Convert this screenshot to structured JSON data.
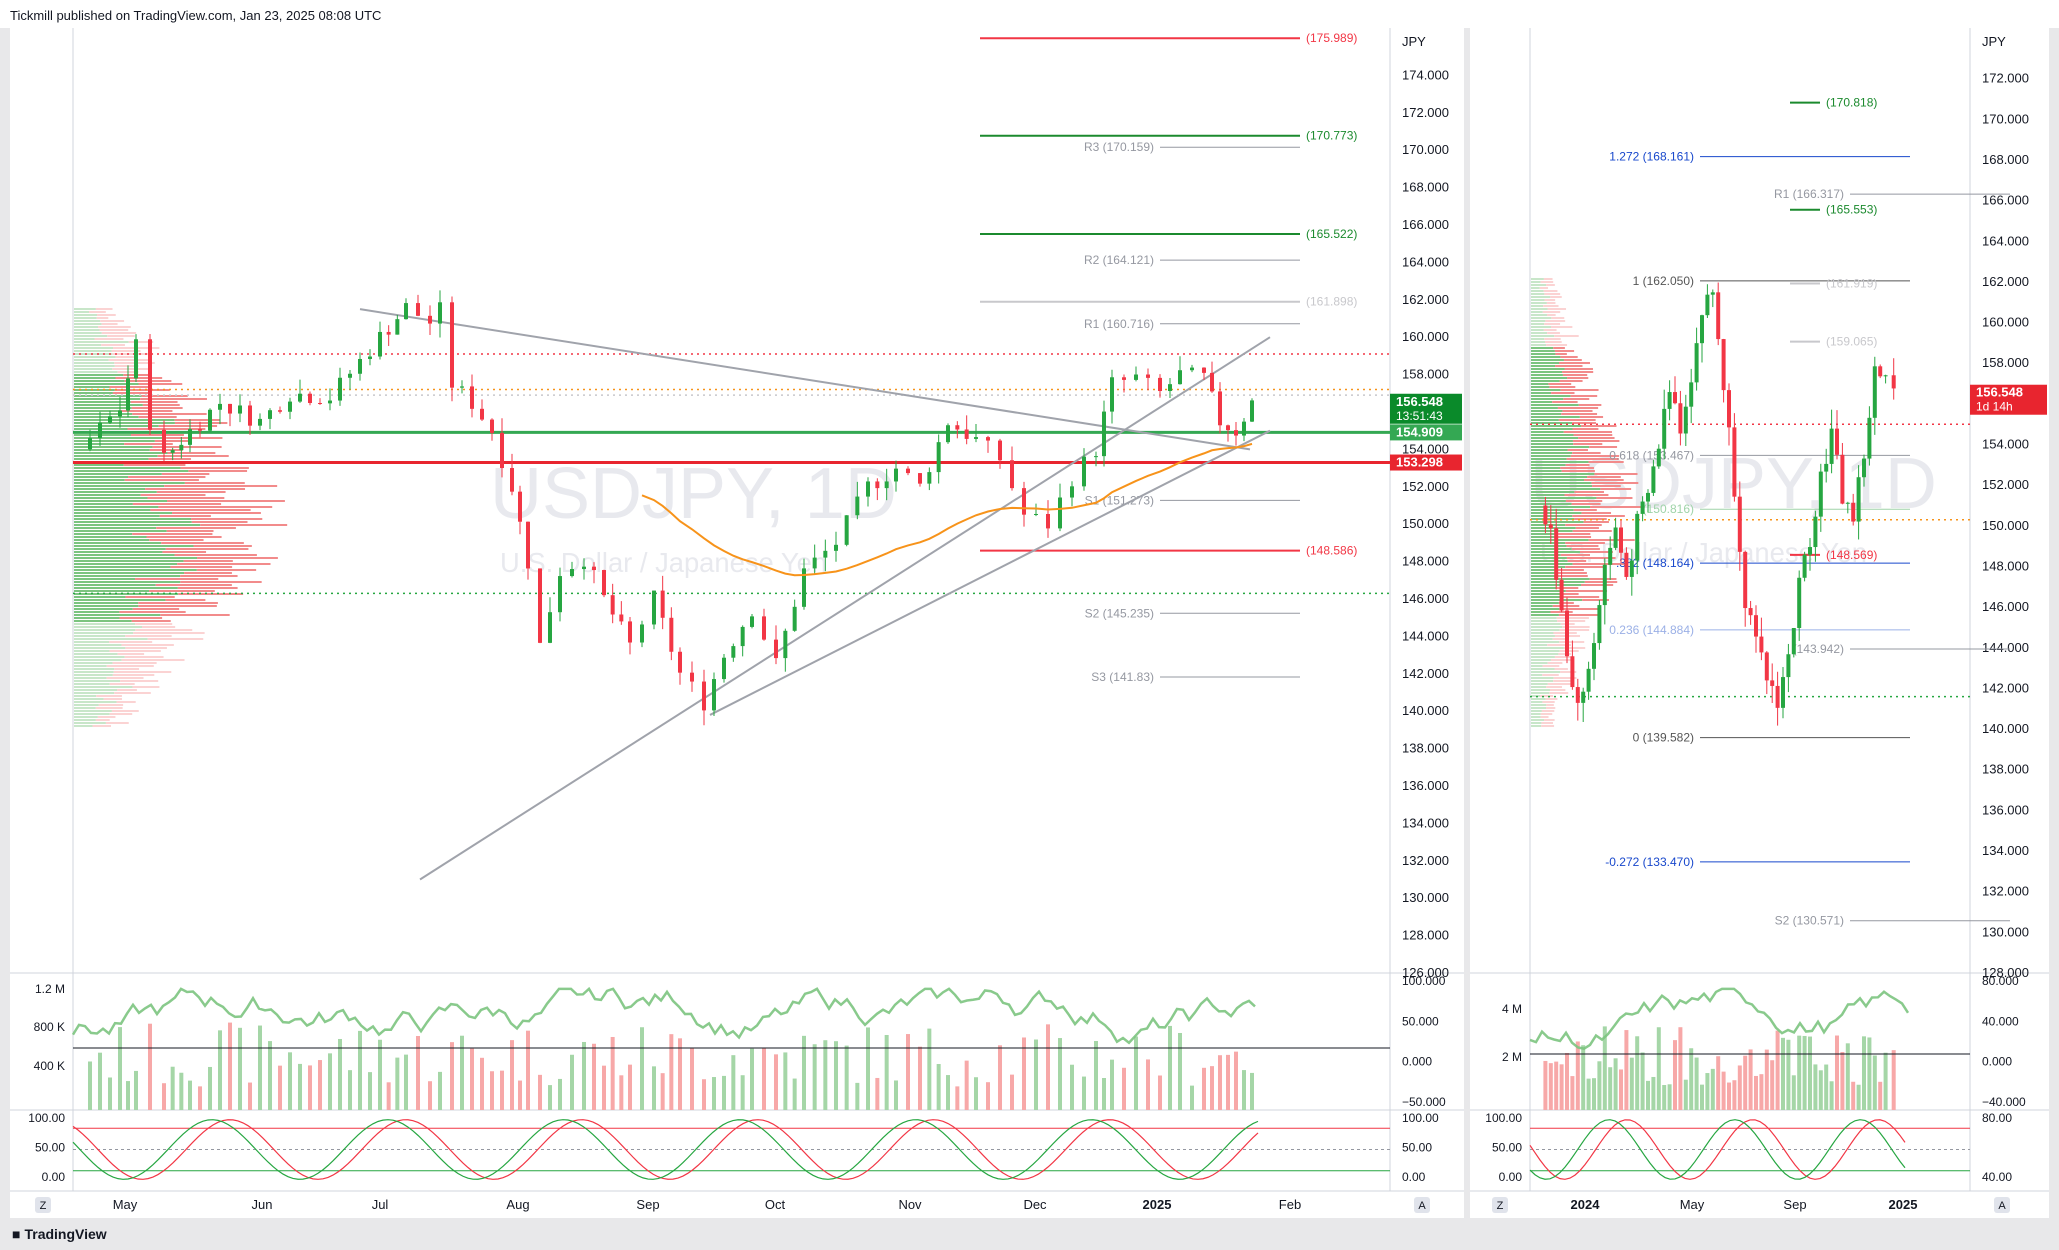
{
  "header": {
    "text": "Tickmill published on TradingView.com, Jan 23, 2025 08:08 UTC"
  },
  "footer": {
    "brand": "TradingView"
  },
  "colors": {
    "up": "#26a641",
    "down": "#f23645",
    "ema": "#f7931a",
    "grid": "#f0f3fa",
    "fib": "#1848cc"
  },
  "chart_data": [
    {
      "type": "candlestick",
      "title": "USDJPY",
      "subtitle": "U.S. Dollar / Japanese Yen",
      "currency": "JPY",
      "ylim": [
        126,
        176
      ],
      "y_ticks": [
        "174.000",
        "172.000",
        "170.000",
        "168.000",
        "166.000",
        "164.000",
        "162.000",
        "160.000",
        "158.000",
        "156.000",
        "154.000",
        "152.000",
        "150.000",
        "148.000",
        "146.000",
        "144.000",
        "142.000",
        "140.000",
        "138.000",
        "136.000",
        "134.000",
        "132.000",
        "130.000",
        "128.000",
        "126.000"
      ],
      "x_ticks": [
        "May",
        "Jun",
        "Jul",
        "Aug",
        "Sep",
        "Oct",
        "Nov",
        "Dec",
        "2025",
        "Feb"
      ],
      "candles_anchor": [
        {
          "x": 0,
          "y": 154.0
        },
        {
          "x": 20,
          "y": 156.2
        },
        {
          "x": 28,
          "y": 159.5
        },
        {
          "x": 35,
          "y": 155.5
        },
        {
          "x": 42,
          "y": 153.5
        },
        {
          "x": 55,
          "y": 155.0
        },
        {
          "x": 70,
          "y": 156.5
        },
        {
          "x": 90,
          "y": 155.5
        },
        {
          "x": 105,
          "y": 157.0
        },
        {
          "x": 125,
          "y": 156.8
        },
        {
          "x": 150,
          "y": 160.0
        },
        {
          "x": 163,
          "y": 161.6
        },
        {
          "x": 175,
          "y": 160.8
        },
        {
          "x": 180,
          "y": 161.4
        },
        {
          "x": 186,
          "y": 157.5
        },
        {
          "x": 196,
          "y": 156.5
        },
        {
          "x": 206,
          "y": 155.0
        },
        {
          "x": 216,
          "y": 152.0
        },
        {
          "x": 224,
          "y": 148.0
        },
        {
          "x": 230,
          "y": 143.5
        },
        {
          "x": 240,
          "y": 147.5
        },
        {
          "x": 252,
          "y": 148.2
        },
        {
          "x": 262,
          "y": 146.0
        },
        {
          "x": 275,
          "y": 143.5
        },
        {
          "x": 287,
          "y": 146.0
        },
        {
          "x": 300,
          "y": 142.0
        },
        {
          "x": 312,
          "y": 140.5
        },
        {
          "x": 322,
          "y": 143.0
        },
        {
          "x": 336,
          "y": 145.5
        },
        {
          "x": 348,
          "y": 142.5
        },
        {
          "x": 362,
          "y": 147.5
        },
        {
          "x": 378,
          "y": 149.0
        },
        {
          "x": 394,
          "y": 152.0
        },
        {
          "x": 408,
          "y": 153.0
        },
        {
          "x": 420,
          "y": 152.0
        },
        {
          "x": 434,
          "y": 155.5
        },
        {
          "x": 448,
          "y": 154.5
        },
        {
          "x": 460,
          "y": 153.5
        },
        {
          "x": 472,
          "y": 150.5
        },
        {
          "x": 484,
          "y": 150.0
        },
        {
          "x": 496,
          "y": 152.5
        },
        {
          "x": 508,
          "y": 154.0
        },
        {
          "x": 516,
          "y": 157.5
        },
        {
          "x": 528,
          "y": 157.8
        },
        {
          "x": 540,
          "y": 157.0
        },
        {
          "x": 550,
          "y": 158.0
        },
        {
          "x": 562,
          "y": 157.8
        },
        {
          "x": 570,
          "y": 155.5
        },
        {
          "x": 578,
          "y": 155.0
        },
        {
          "x": 586,
          "y": 156.5
        }
      ],
      "levels": [
        {
          "label": "(175.989)",
          "value": 175.989,
          "color": "#f23645",
          "kind": "line"
        },
        {
          "label": "(170.773)",
          "value": 170.773,
          "color": "#1b8a2e",
          "kind": "line"
        },
        {
          "label": "R3 (170.159)",
          "value": 170.159,
          "color": "#9598a1",
          "kind": "pivot"
        },
        {
          "label": "(165.522)",
          "value": 165.522,
          "color": "#1b8a2e",
          "kind": "line"
        },
        {
          "label": "R2 (164.121)",
          "value": 164.121,
          "color": "#9598a1",
          "kind": "pivot"
        },
        {
          "label": "(161.898)",
          "value": 161.898,
          "color": "#c8c8cc",
          "kind": "line"
        },
        {
          "label": "R1 (160.716)",
          "value": 160.716,
          "color": "#9598a1",
          "kind": "pivot"
        },
        {
          "label": "S1 (151.273)",
          "value": 151.273,
          "color": "#9598a1",
          "kind": "pivot"
        },
        {
          "label": "(148.586)",
          "value": 148.586,
          "color": "#f23645",
          "kind": "line"
        },
        {
          "label": "S2 (145.235)",
          "value": 145.235,
          "color": "#9598a1",
          "kind": "pivot"
        },
        {
          "label": "S3 (141.83)",
          "value": 141.83,
          "color": "#9598a1",
          "kind": "pivot"
        }
      ],
      "price_badges": [
        {
          "label": "156.548",
          "sub": "13:51:43",
          "value": 156.548,
          "color": "#0a8a2a"
        },
        {
          "label": "154.909",
          "value": 154.909,
          "color": "#34a853"
        },
        {
          "label": "153.298",
          "value": 153.298,
          "color": "#e8252f"
        }
      ],
      "volume": {
        "ticks": [
          "1.2 M",
          "800 K",
          "400 K"
        ],
        "osc_ticks": [
          "100.000",
          "50.000",
          "0.000",
          "−50.000"
        ]
      },
      "stoch": {
        "ticks": [
          "100.00",
          "50.00",
          "0.00"
        ]
      }
    },
    {
      "type": "candlestick",
      "title": "USDJPY",
      "subtitle": "U.S. Dollar / Japanese Yen",
      "currency": "JPY",
      "ylim": [
        128,
        174
      ],
      "y_ticks": [
        "172.000",
        "170.000",
        "168.000",
        "166.000",
        "164.000",
        "162.000",
        "160.000",
        "158.000",
        "156.000",
        "154.000",
        "152.000",
        "150.000",
        "148.000",
        "146.000",
        "144.000",
        "142.000",
        "140.000",
        "138.000",
        "136.000",
        "134.000",
        "132.000",
        "130.000",
        "128.000"
      ],
      "x_ticks": [
        "2024",
        "May",
        "Sep",
        "2025"
      ],
      "candles_anchor": [
        {
          "x": 0,
          "y": 151.0
        },
        {
          "x": 8,
          "y": 149.5
        },
        {
          "x": 16,
          "y": 146.0
        },
        {
          "x": 24,
          "y": 142.0
        },
        {
          "x": 32,
          "y": 141.5
        },
        {
          "x": 40,
          "y": 144.5
        },
        {
          "x": 48,
          "y": 148.0
        },
        {
          "x": 56,
          "y": 149.8
        },
        {
          "x": 64,
          "y": 147.5
        },
        {
          "x": 72,
          "y": 150.0
        },
        {
          "x": 80,
          "y": 151.5
        },
        {
          "x": 88,
          "y": 154.0
        },
        {
          "x": 96,
          "y": 157.0
        },
        {
          "x": 104,
          "y": 155.0
        },
        {
          "x": 112,
          "y": 157.5
        },
        {
          "x": 120,
          "y": 160.5
        },
        {
          "x": 128,
          "y": 161.5
        },
        {
          "x": 136,
          "y": 157.0
        },
        {
          "x": 144,
          "y": 152.0
        },
        {
          "x": 152,
          "y": 146.5
        },
        {
          "x": 160,
          "y": 144.0
        },
        {
          "x": 168,
          "y": 142.5
        },
        {
          "x": 176,
          "y": 141.5
        },
        {
          "x": 184,
          "y": 143.5
        },
        {
          "x": 192,
          "y": 147.0
        },
        {
          "x": 200,
          "y": 149.5
        },
        {
          "x": 208,
          "y": 152.5
        },
        {
          "x": 216,
          "y": 154.5
        },
        {
          "x": 224,
          "y": 151.5
        },
        {
          "x": 232,
          "y": 150.5
        },
        {
          "x": 240,
          "y": 153.5
        },
        {
          "x": 248,
          "y": 157.5
        },
        {
          "x": 256,
          "y": 157.0
        },
        {
          "x": 262,
          "y": 156.5
        }
      ],
      "levels": [
        {
          "label": "(170.818)",
          "value": 170.818,
          "color": "#1b8a2e",
          "kind": "line"
        },
        {
          "label": "1.272 (168.161)",
          "value": 168.161,
          "color": "#1848cc",
          "kind": "fib"
        },
        {
          "label": "R1 (166.317)",
          "value": 166.317,
          "color": "#9598a1",
          "kind": "pivot"
        },
        {
          "label": "(165.553)",
          "value": 165.553,
          "color": "#1b8a2e",
          "kind": "line"
        },
        {
          "label": "1 (162.050)",
          "value": 162.05,
          "color": "#555555",
          "kind": "fib"
        },
        {
          "label": "(161.919)",
          "value": 161.919,
          "color": "#c8c8cc",
          "kind": "line"
        },
        {
          "label": "(159.065)",
          "value": 159.065,
          "color": "#c8c8cc",
          "kind": "line"
        },
        {
          "label": "0.618 (153.467)",
          "value": 153.467,
          "color": "#9598a1",
          "kind": "fib"
        },
        {
          "label": "(150.816)",
          "value": 150.816,
          "color": "#9fd4a8",
          "kind": "fib"
        },
        {
          "label": ".382 (148.164)",
          "value": 148.164,
          "color": "#1848cc",
          "kind": "fib"
        },
        {
          "label": "(148.569)",
          "value": 148.569,
          "color": "#f23645",
          "kind": "line"
        },
        {
          "label": "0.236 (144.884)",
          "value": 144.884,
          "color": "#9bb0e6",
          "kind": "fib"
        },
        {
          "label": "(143.942)",
          "value": 143.942,
          "color": "#9598a1",
          "kind": "pivot"
        },
        {
          "label": "0 (139.582)",
          "value": 139.582,
          "color": "#555555",
          "kind": "fib"
        },
        {
          "label": "-0.272 (133.470)",
          "value": 133.47,
          "color": "#1848cc",
          "kind": "fib"
        },
        {
          "label": "S2 (130.571)",
          "value": 130.571,
          "color": "#9598a1",
          "kind": "pivot"
        }
      ],
      "price_badges": [
        {
          "label": "156.548",
          "sub": "1d 14h",
          "value": 156.548,
          "color": "#e8252f"
        }
      ],
      "volume": {
        "ticks": [
          "4 M",
          "2 M"
        ],
        "osc_ticks": [
          "80.000",
          "40.000",
          "0.000",
          "−40.000"
        ]
      },
      "stoch": {
        "ticks": [
          "100.00",
          "50.00",
          "0.00"
        ],
        "osc_ticks": [
          "80.00",
          "40.00"
        ]
      }
    }
  ]
}
